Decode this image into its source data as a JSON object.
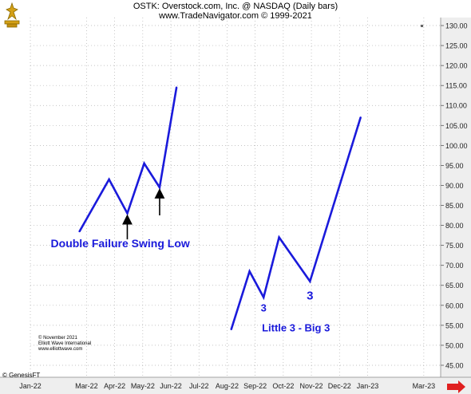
{
  "header": {
    "title": "OSTK:  Overstock.com, Inc. @ NASDAQ  (Daily bars)",
    "subtitle": "www.TradeNavigator.com © 1999-2021"
  },
  "footer": {
    "copyright_lines": [
      "© November 2021",
      "Elliott Wave International",
      "www.elliottwave.com"
    ],
    "genesis": "© GenesisFT"
  },
  "colors": {
    "line": "#1a1adb",
    "annotation_text": "#1a1adb",
    "arrow": "#000000",
    "grid": "#b0b0b0",
    "axis_bg": "#eeeeee",
    "logo": "#d4a017",
    "nav_arrow": "#e02020"
  },
  "icons": {
    "logo": "gold-bull-logo-icon",
    "next": "red-right-arrow-icon"
  },
  "chart_data": {
    "type": "line",
    "title": "OSTK:  Overstock.com, Inc. @ NASDAQ  (Daily bars)",
    "y_tick_labels": [
      "130.00",
      "125.00",
      "120.00",
      "115.00",
      "110.00",
      "105.00",
      "100.00",
      "95.00",
      "90.00",
      "85.00",
      "80.00",
      "75.00",
      "70.00",
      "65.00",
      "60.00",
      "55.00",
      "50.00",
      "45.00"
    ],
    "ylim": [
      42,
      132
    ],
    "x_tick_labels": [
      "Jan-22",
      "Mar-22",
      "Apr-22",
      "May-22",
      "Jun-22",
      "Jul-22",
      "Aug-22",
      "Sep-22",
      "Oct-22",
      "Nov-22",
      "Dec-22",
      "Jan-23",
      "Mar-23"
    ],
    "x_tick_index": [
      0,
      2,
      3,
      4,
      5,
      6,
      7,
      8,
      9,
      10,
      11,
      12,
      14
    ],
    "xlim": [
      0,
      14.6
    ],
    "grid": true,
    "series": [
      {
        "x": [
          1.75,
          2.8,
          3.45,
          4.05,
          4.6,
          5.2
        ],
        "values": [
          78.5,
          91.5,
          83,
          95.5,
          89.5,
          114.5
        ]
      },
      {
        "x": [
          7.15,
          7.8,
          8.3,
          8.85,
          9.95,
          11.75
        ],
        "values": [
          54,
          68.5,
          62,
          77,
          66,
          107
        ]
      }
    ],
    "annotations": [
      {
        "text": "Double Failure Swing Low",
        "x": 3.2,
        "y": 74.5,
        "size": 14
      },
      {
        "text": "Little 3 - Big 3",
        "x": 9.45,
        "y": 53.5,
        "size": 13
      },
      {
        "text": "3",
        "x": 8.3,
        "y": 58.5,
        "size": 13
      },
      {
        "text": "3",
        "x": 9.95,
        "y": 61.5,
        "size": 15
      }
    ],
    "arrows": [
      {
        "x": 3.45,
        "from_y": 76.5,
        "to_y": 81.5
      },
      {
        "x": 4.6,
        "from_y": 82.5,
        "to_y": 88
      }
    ]
  }
}
